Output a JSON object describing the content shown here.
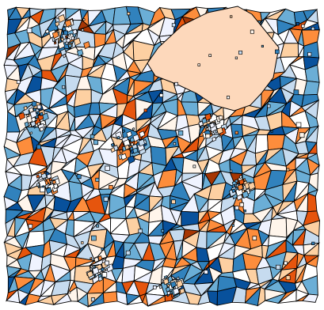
{
  "map": {
    "type": "choropleth",
    "legend": null,
    "title": "",
    "palette": {
      "background": "#ffffff",
      "stroke": "#000000",
      "classes": [
        "#08519c",
        "#3182bd",
        "#6baed6",
        "#c6dbef",
        "#eff3ff",
        "#ffffff",
        "#fff5eb",
        "#fdd0a2",
        "#fd8d3c",
        "#e6550d",
        "#a63603"
      ]
    }
  }
}
